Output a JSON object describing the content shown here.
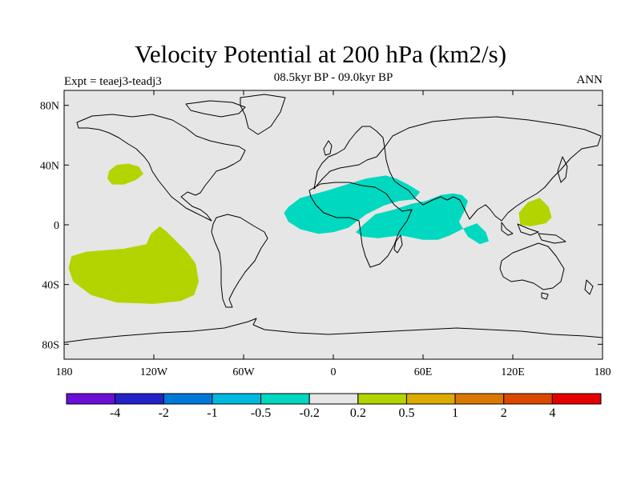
{
  "title": "Velocity Potential at 200 hPa (km2/s)",
  "subtitle": "08.5kyr BP - 09.0kyr BP",
  "experiment": "Expt = teaej3-teadj3",
  "season": "ANN",
  "map": {
    "projection": "cylindrical-equidistant",
    "lon_range": [
      -180,
      180
    ],
    "lat_range": [
      -90,
      90
    ],
    "background_color": "#e6e6e6",
    "lat_ticks": [
      {
        "value": 80,
        "label": "80N"
      },
      {
        "value": 40,
        "label": "40N"
      },
      {
        "value": 0,
        "label": "0"
      },
      {
        "value": -40,
        "label": "40S"
      },
      {
        "value": -80,
        "label": "80S"
      }
    ],
    "lon_ticks": [
      {
        "value": -180,
        "label": "180"
      },
      {
        "value": -120,
        "label": "120W"
      },
      {
        "value": -60,
        "label": "60W"
      },
      {
        "value": 0,
        "label": "0"
      },
      {
        "value": 60,
        "label": "60E"
      },
      {
        "value": 120,
        "label": "120E"
      },
      {
        "value": 180,
        "label": "180"
      }
    ],
    "regions": [
      {
        "name": "north-pacific-positive",
        "level": "0.2 to 0.5",
        "color": "#b4d400",
        "lonlat": [
          [
            -150,
            36
          ],
          [
            -145,
            40
          ],
          [
            -137,
            41
          ],
          [
            -130,
            39
          ],
          [
            -127,
            34
          ],
          [
            -132,
            30
          ],
          [
            -140,
            27
          ],
          [
            -148,
            27
          ],
          [
            -151,
            31
          ]
        ]
      },
      {
        "name": "south-pacific-positive",
        "level": "0.2 to 0.5",
        "color": "#b4d400",
        "lonlat": [
          [
            -175,
            -21
          ],
          [
            -165,
            -18
          ],
          [
            -140,
            -16
          ],
          [
            -125,
            -13
          ],
          [
            -122,
            -6
          ],
          [
            -116,
            -1
          ],
          [
            -111,
            -5
          ],
          [
            -98,
            -18
          ],
          [
            -92,
            -26
          ],
          [
            -90,
            -38
          ],
          [
            -93,
            -47
          ],
          [
            -102,
            -51
          ],
          [
            -120,
            -53
          ],
          [
            -145,
            -52
          ],
          [
            -162,
            -47
          ],
          [
            -174,
            -38
          ],
          [
            -177,
            -29
          ]
        ]
      },
      {
        "name": "western-pacific-positive",
        "level": "0.2 to 0.5",
        "color": "#b4d400",
        "lonlat": [
          [
            124,
            8
          ],
          [
            130,
            15
          ],
          [
            138,
            18
          ],
          [
            144,
            12
          ],
          [
            146,
            5
          ],
          [
            142,
            1
          ],
          [
            132,
            -1
          ],
          [
            125,
            0
          ]
        ]
      },
      {
        "name": "africa-arabia-negative",
        "level": "-0.5 to -0.2",
        "color": "#00d8c0",
        "lonlat": [
          [
            -30,
            12
          ],
          [
            -22,
            18
          ],
          [
            -4,
            23
          ],
          [
            12,
            28
          ],
          [
            22,
            31
          ],
          [
            35,
            33
          ],
          [
            42,
            31
          ],
          [
            50,
            27
          ],
          [
            58,
            22
          ],
          [
            54,
            17
          ],
          [
            44,
            16
          ],
          [
            34,
            13
          ],
          [
            22,
            7
          ],
          [
            10,
            -2
          ],
          [
            0,
            -5
          ],
          [
            -10,
            -6
          ],
          [
            -22,
            -3
          ],
          [
            -30,
            2
          ],
          [
            -33,
            8
          ]
        ]
      },
      {
        "name": "indian-ocean-negative",
        "level": "-0.5 to -0.2",
        "color": "#00d8c0",
        "lonlat": [
          [
            15,
            -5
          ],
          [
            20,
            0
          ],
          [
            28,
            7
          ],
          [
            40,
            10
          ],
          [
            52,
            14
          ],
          [
            62,
            16
          ],
          [
            72,
            20
          ],
          [
            80,
            21
          ],
          [
            86,
            20
          ],
          [
            90,
            16
          ],
          [
            88,
            10
          ],
          [
            84,
            2
          ],
          [
            90,
            -8
          ],
          [
            98,
            -13
          ],
          [
            104,
            -11
          ],
          [
            102,
            -5
          ],
          [
            96,
            1
          ],
          [
            88,
            -2
          ],
          [
            78,
            -7
          ],
          [
            70,
            -10
          ],
          [
            60,
            -10
          ],
          [
            45,
            -7
          ],
          [
            30,
            -9
          ],
          [
            20,
            -8
          ]
        ]
      }
    ]
  },
  "colorbar": {
    "colors": [
      "#6a0fd8",
      "#2222c8",
      "#0078d8",
      "#00b8e0",
      "#00d8c0",
      "#e6e6e6",
      "#b4d400",
      "#dcac00",
      "#dc7800",
      "#dc4800",
      "#e60000"
    ],
    "labels": [
      "-4",
      "-2",
      "-1",
      "-0.5",
      "-0.2",
      "0.2",
      "0.5",
      "1",
      "2",
      "4"
    ]
  }
}
